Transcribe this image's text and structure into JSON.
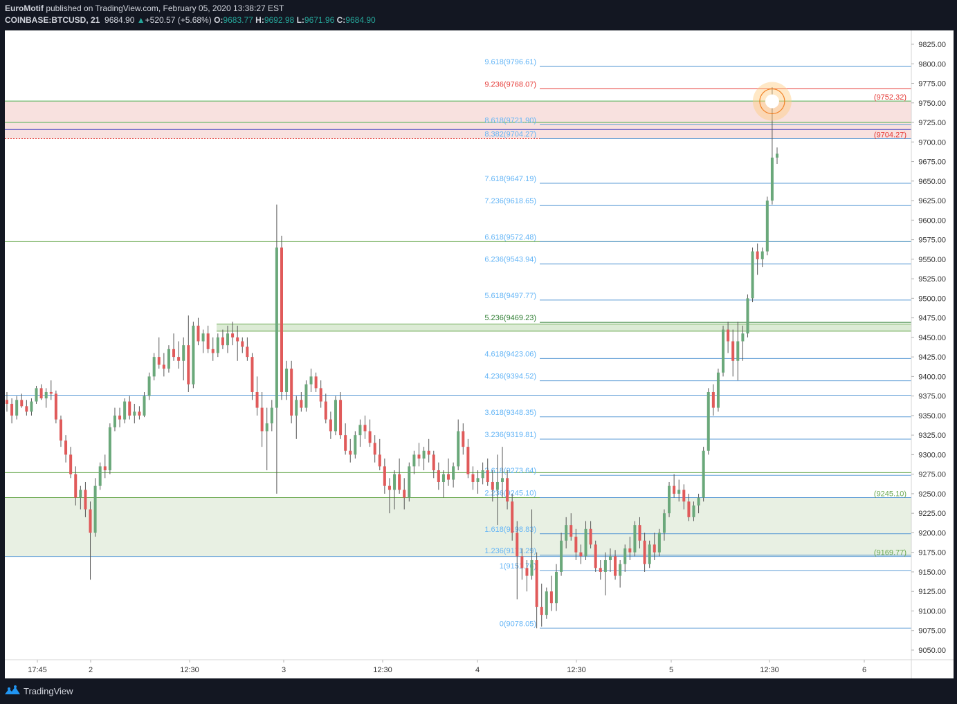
{
  "header": {
    "author": "EuroMotif",
    "published_text": " published on TradingView.com, February 05, 2020 13:38:27 EST",
    "symbol": "COINBASE:BTCUSD, 21",
    "last": "9684.90",
    "change": "+520.57 (+5.68%)",
    "o_label": "O:",
    "o_value": "9683.77",
    "h_label": "H:",
    "h_value": "9692.98",
    "l_label": "L:",
    "l_value": "9671.96",
    "c_label": "C:",
    "c_value": "9684.90"
  },
  "footer": {
    "brand": "TradingView"
  },
  "colors": {
    "background": "#131722",
    "fib": "#5b9bd5",
    "fib_label": "#64b5f6",
    "red": "#e53935",
    "green_zone": "#e8f0e3",
    "red_zone": "#f8e1df",
    "up": "#6aa87a",
    "down": "#e05a5a"
  },
  "chart_data": {
    "type": "candlestick",
    "price_axis": {
      "ticks": [
        "9825.00",
        "9800.00",
        "9775.00",
        "9750.00",
        "9725.00",
        "9700.00",
        "9675.00",
        "9650.00",
        "9625.00",
        "9600.00",
        "9575.00",
        "9550.00",
        "9525.00",
        "9500.00",
        "9475.00",
        "9450.00",
        "9425.00",
        "9400.00",
        "9375.00",
        "9350.00",
        "9325.00",
        "9300.00",
        "9275.00",
        "9250.00",
        "9225.00",
        "9200.00",
        "9175.00",
        "9150.00",
        "9125.00",
        "9100.00",
        "9075.00",
        "9050.00"
      ],
      "ylim": [
        9040,
        9835
      ]
    },
    "time_axis": {
      "ticks": [
        "17:45",
        "2",
        "12:30",
        "3",
        "12:30",
        "4",
        "12:30",
        "5",
        "12:30",
        "6"
      ]
    },
    "fib_levels": [
      {
        "label": "0(9078.05)",
        "price": 9078.05,
        "color": "#64b5f6"
      },
      {
        "label": "1(9151.76)",
        "price": 9151.76,
        "color": "#64b5f6"
      },
      {
        "label": "1.236(9171.29)",
        "price": 9171.29,
        "color": "#64b5f6"
      },
      {
        "label": "1.618(9198.83)",
        "price": 9198.83,
        "color": "#64b5f6"
      },
      {
        "label": "2.236(9245.10)",
        "price": 9245.1,
        "color": "#64b5f6"
      },
      {
        "label": "2.618(9273.64)",
        "price": 9273.64,
        "color": "#64b5f6"
      },
      {
        "label": "3.236(9319.81)",
        "price": 9319.81,
        "color": "#64b5f6"
      },
      {
        "label": "3.618(9348.35)",
        "price": 9348.35,
        "color": "#64b5f6"
      },
      {
        "label": "4.236(9394.52)",
        "price": 9394.52,
        "color": "#64b5f6"
      },
      {
        "label": "4.618(9423.06)",
        "price": 9423.06,
        "color": "#64b5f6"
      },
      {
        "label": "5.236(9469.23)",
        "price": 9469.23,
        "color": "#2e7d32"
      },
      {
        "label": "5.618(9497.77)",
        "price": 9497.77,
        "color": "#64b5f6"
      },
      {
        "label": "6.236(9543.94)",
        "price": 9543.94,
        "color": "#64b5f6"
      },
      {
        "label": "6.618(9572.48)",
        "price": 9572.48,
        "color": "#64b5f6"
      },
      {
        "label": "7.236(9618.65)",
        "price": 9618.65,
        "color": "#64b5f6"
      },
      {
        "label": "7.618(9647.19)",
        "price": 9647.19,
        "color": "#64b5f6"
      },
      {
        "label": "8.382(9704.27)",
        "price": 9704.27,
        "color": "#64b5f6"
      },
      {
        "label": "8.618(9721.90)",
        "price": 9721.9,
        "color": "#64b5f6"
      },
      {
        "label": "9.236(9768.07)",
        "price": 9768.07,
        "color": "#e53935"
      },
      {
        "label": "9.618(9796.61)",
        "price": 9796.61,
        "color": "#64b5f6"
      }
    ],
    "level_labels": [
      {
        "label": "(9752.32)",
        "price": 9752.32,
        "color": "#e53935"
      },
      {
        "label": "(9704.27)",
        "price": 9704.27,
        "color": "#e53935"
      },
      {
        "label": "(9245.10)",
        "price": 9245.1,
        "color": "#6aa84f"
      },
      {
        "label": "(9169.77)",
        "price": 9169.77,
        "color": "#6aa84f"
      }
    ],
    "zones": [
      {
        "from": 9169.77,
        "to": 9245.1,
        "color": "#e8f0e3"
      },
      {
        "from": 9704.27,
        "to": 9752.32,
        "color": "#f8e1df"
      },
      {
        "from": 9458,
        "to": 9467,
        "color": "#dcebd5"
      }
    ],
    "candles": [
      [
        9370,
        9380,
        9355,
        9365
      ],
      [
        9365,
        9372,
        9340,
        9350
      ],
      [
        9350,
        9375,
        9345,
        9370
      ],
      [
        9370,
        9378,
        9360,
        9362
      ],
      [
        9362,
        9370,
        9350,
        9355
      ],
      [
        9355,
        9372,
        9350,
        9368
      ],
      [
        9368,
        9388,
        9365,
        9385
      ],
      [
        9385,
        9390,
        9370,
        9372
      ],
      [
        9372,
        9385,
        9360,
        9380
      ],
      [
        9380,
        9395,
        9370,
        9378
      ],
      [
        9378,
        9382,
        9340,
        9345
      ],
      [
        9345,
        9350,
        9310,
        9318
      ],
      [
        9318,
        9325,
        9290,
        9300
      ],
      [
        9300,
        9310,
        9270,
        9275
      ],
      [
        9275,
        9285,
        9235,
        9245
      ],
      [
        9245,
        9260,
        9230,
        9255
      ],
      [
        9255,
        9265,
        9220,
        9230
      ],
      [
        9230,
        9240,
        9140,
        9200
      ],
      [
        9200,
        9270,
        9195,
        9260
      ],
      [
        9260,
        9290,
        9255,
        9285
      ],
      [
        9285,
        9300,
        9270,
        9280
      ],
      [
        9280,
        9340,
        9275,
        9335
      ],
      [
        9335,
        9360,
        9330,
        9350
      ],
      [
        9350,
        9360,
        9335,
        9345
      ],
      [
        9345,
        9372,
        9340,
        9368
      ],
      [
        9368,
        9375,
        9345,
        9350
      ],
      [
        9350,
        9365,
        9340,
        9355
      ],
      [
        9355,
        9362,
        9345,
        9350
      ],
      [
        9350,
        9380,
        9348,
        9375
      ],
      [
        9375,
        9405,
        9370,
        9400
      ],
      [
        9400,
        9430,
        9395,
        9425
      ],
      [
        9425,
        9450,
        9410,
        9415
      ],
      [
        9415,
        9430,
        9400,
        9410
      ],
      [
        9410,
        9440,
        9405,
        9435
      ],
      [
        9435,
        9455,
        9420,
        9425
      ],
      [
        9425,
        9445,
        9410,
        9420
      ],
      [
        9420,
        9450,
        9395,
        9440
      ],
      [
        9440,
        9478,
        9380,
        9390
      ],
      [
        9390,
        9470,
        9385,
        9465
      ],
      [
        9465,
        9475,
        9440,
        9445
      ],
      [
        9445,
        9460,
        9430,
        9455
      ],
      [
        9455,
        9465,
        9430,
        9435
      ],
      [
        9435,
        9450,
        9420,
        9430
      ],
      [
        9430,
        9455,
        9425,
        9450
      ],
      [
        9450,
        9460,
        9435,
        9440
      ],
      [
        9440,
        9465,
        9430,
        9455
      ],
      [
        9455,
        9470,
        9440,
        9450
      ],
      [
        9450,
        9465,
        9420,
        9445
      ],
      [
        9445,
        9450,
        9430,
        9438
      ],
      [
        9438,
        9450,
        9420,
        9425
      ],
      [
        9425,
        9430,
        9370,
        9380
      ],
      [
        9380,
        9400,
        9350,
        9360
      ],
      [
        9360,
        9380,
        9310,
        9330
      ],
      [
        9330,
        9360,
        9280,
        9340
      ],
      [
        9340,
        9370,
        9330,
        9360
      ],
      [
        9360,
        9620,
        9250,
        9565
      ],
      [
        9565,
        9580,
        9370,
        9380
      ],
      [
        9380,
        9420,
        9370,
        9410
      ],
      [
        9410,
        9420,
        9340,
        9350
      ],
      [
        9350,
        9375,
        9320,
        9370
      ],
      [
        9370,
        9380,
        9355,
        9360
      ],
      [
        9360,
        9395,
        9355,
        9390
      ],
      [
        9390,
        9410,
        9380,
        9400
      ],
      [
        9400,
        9405,
        9380,
        9385
      ],
      [
        9385,
        9395,
        9360,
        9368
      ],
      [
        9368,
        9378,
        9340,
        9345
      ],
      [
        9345,
        9355,
        9320,
        9330
      ],
      [
        9330,
        9375,
        9325,
        9370
      ],
      [
        9370,
        9380,
        9320,
        9325
      ],
      [
        9325,
        9340,
        9300,
        9305
      ],
      [
        9305,
        9320,
        9290,
        9300
      ],
      [
        9300,
        9330,
        9295,
        9325
      ],
      [
        9325,
        9345,
        9310,
        9338
      ],
      [
        9338,
        9350,
        9320,
        9330
      ],
      [
        9330,
        9345,
        9310,
        9315
      ],
      [
        9315,
        9325,
        9290,
        9300
      ],
      [
        9300,
        9320,
        9280,
        9285
      ],
      [
        9285,
        9295,
        9250,
        9260
      ],
      [
        9260,
        9270,
        9225,
        9255
      ],
      [
        9255,
        9280,
        9230,
        9275
      ],
      [
        9275,
        9295,
        9250,
        9255
      ],
      [
        9255,
        9270,
        9230,
        9245
      ],
      [
        9245,
        9290,
        9240,
        9285
      ],
      [
        9285,
        9305,
        9275,
        9300
      ],
      [
        9300,
        9315,
        9285,
        9295
      ],
      [
        9295,
        9310,
        9280,
        9305
      ],
      [
        9305,
        9320,
        9290,
        9300
      ],
      [
        9300,
        9305,
        9270,
        9280
      ],
      [
        9280,
        9290,
        9255,
        9265
      ],
      [
        9265,
        9280,
        9245,
        9275
      ],
      [
        9275,
        9295,
        9260,
        9268
      ],
      [
        9268,
        9290,
        9258,
        9285
      ],
      [
        9285,
        9345,
        9280,
        9330
      ],
      [
        9330,
        9340,
        9300,
        9310
      ],
      [
        9310,
        9320,
        9270,
        9275
      ],
      [
        9275,
        9285,
        9255,
        9265
      ],
      [
        9265,
        9280,
        9250,
        9270
      ],
      [
        9270,
        9290,
        9262,
        9280
      ],
      [
        9280,
        9295,
        9260,
        9265
      ],
      [
        9265,
        9280,
        9240,
        9255
      ],
      [
        9255,
        9300,
        9210,
        9265
      ],
      [
        9265,
        9310,
        9245,
        9270
      ],
      [
        9270,
        9280,
        9230,
        9240
      ],
      [
        9240,
        9250,
        9190,
        9200
      ],
      [
        9200,
        9215,
        9115,
        9170
      ],
      [
        9170,
        9180,
        9140,
        9155
      ],
      [
        9155,
        9165,
        9125,
        9145
      ],
      [
        9145,
        9230,
        9140,
        9165
      ],
      [
        9165,
        9175,
        9078,
        9105
      ],
      [
        9105,
        9135,
        9080,
        9095
      ],
      [
        9095,
        9130,
        9090,
        9125
      ],
      [
        9125,
        9145,
        9100,
        9110
      ],
      [
        9110,
        9160,
        9100,
        9150
      ],
      [
        9150,
        9200,
        9145,
        9190
      ],
      [
        9190,
        9220,
        9180,
        9210
      ],
      [
        9210,
        9225,
        9190,
        9195
      ],
      [
        9195,
        9205,
        9165,
        9175
      ],
      [
        9175,
        9185,
        9160,
        9170
      ],
      [
        9170,
        9215,
        9165,
        9205
      ],
      [
        9205,
        9215,
        9180,
        9185
      ],
      [
        9185,
        9190,
        9150,
        9155
      ],
      [
        9155,
        9165,
        9140,
        9150
      ],
      [
        9150,
        9175,
        9120,
        9165
      ],
      [
        9165,
        9180,
        9150,
        9170
      ],
      [
        9170,
        9178,
        9140,
        9145
      ],
      [
        9145,
        9165,
        9130,
        9160
      ],
      [
        9160,
        9185,
        9150,
        9180
      ],
      [
        9180,
        9195,
        9165,
        9175
      ],
      [
        9175,
        9215,
        9170,
        9210
      ],
      [
        9210,
        9220,
        9180,
        9190
      ],
      [
        9190,
        9200,
        9150,
        9160
      ],
      [
        9160,
        9190,
        9155,
        9185
      ],
      [
        9185,
        9200,
        9165,
        9175
      ],
      [
        9175,
        9205,
        9170,
        9200
      ],
      [
        9200,
        9230,
        9190,
        9225
      ],
      [
        9225,
        9265,
        9220,
        9260
      ],
      [
        9260,
        9275,
        9245,
        9250
      ],
      [
        9250,
        9268,
        9240,
        9255
      ],
      [
        9255,
        9262,
        9230,
        9240
      ],
      [
        9240,
        9250,
        9215,
        9220
      ],
      [
        9220,
        9240,
        9215,
        9235
      ],
      [
        9235,
        9250,
        9225,
        9245
      ],
      [
        9245,
        9310,
        9240,
        9305
      ],
      [
        9305,
        9385,
        9300,
        9380
      ],
      [
        9380,
        9390,
        9350,
        9360
      ],
      [
        9360,
        9410,
        9355,
        9405
      ],
      [
        9405,
        9465,
        9400,
        9460
      ],
      [
        9460,
        9470,
        9430,
        9445
      ],
      [
        9445,
        9460,
        9400,
        9420
      ],
      [
        9420,
        9470,
        9395,
        9445
      ],
      [
        9445,
        9465,
        9420,
        9455
      ],
      [
        9455,
        9505,
        9450,
        9500
      ],
      [
        9500,
        9565,
        9495,
        9560
      ],
      [
        9560,
        9570,
        9530,
        9550
      ],
      [
        9550,
        9565,
        9540,
        9560
      ],
      [
        9560,
        9630,
        9555,
        9625
      ],
      [
        9625,
        9770,
        9620,
        9680
      ],
      [
        9680,
        9693,
        9672,
        9685
      ]
    ]
  }
}
